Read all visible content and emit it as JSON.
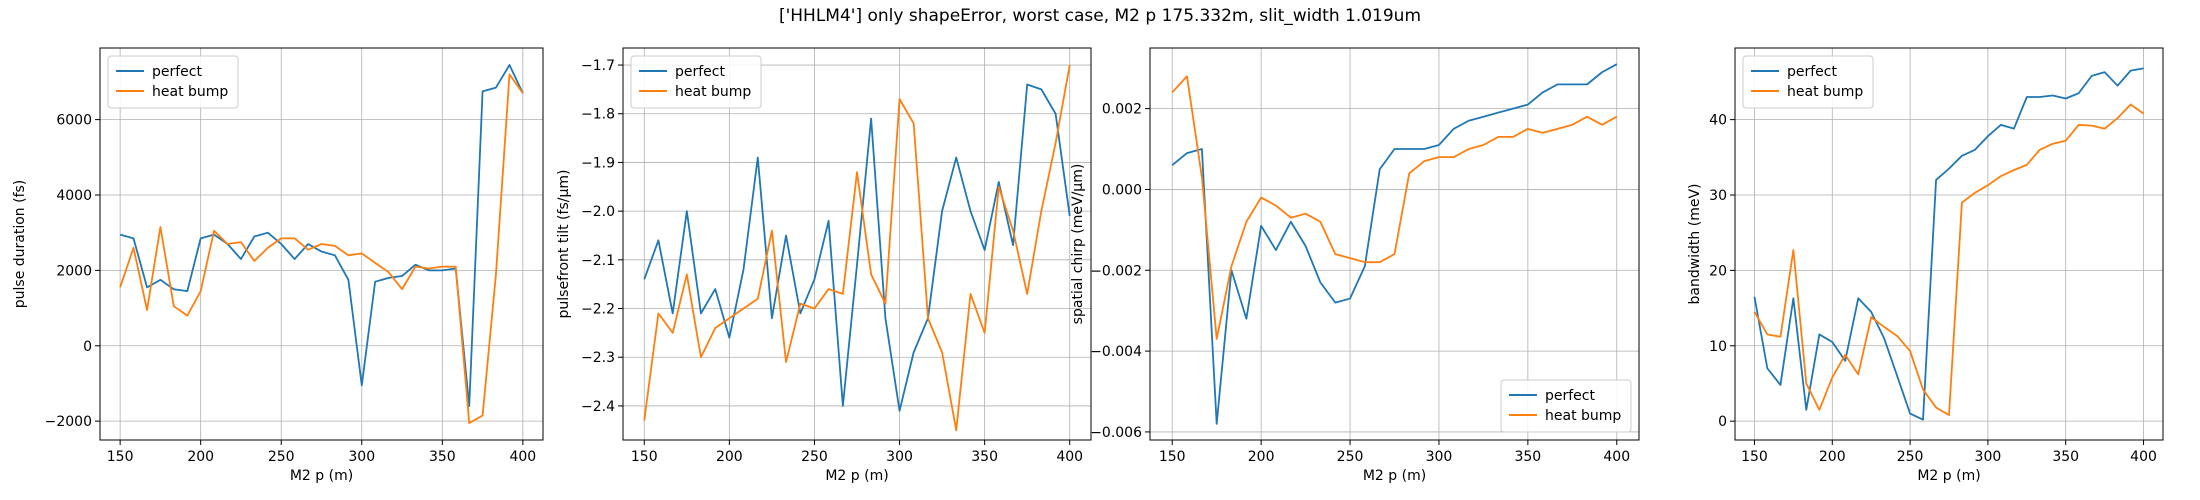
{
  "figure": {
    "title": "['HHLM4'] only shapeError, worst case, M2 p 175.332m, slit_width 1.019um"
  },
  "chart_data": [
    {
      "type": "line",
      "title": "",
      "xlabel": "M2 p (m)",
      "ylabel": "pulse duration (fs)",
      "xlim": [
        137.5,
        412.5
      ],
      "ylim": [
        -2500,
        7900
      ],
      "xticks": [
        150,
        200,
        250,
        300,
        350,
        400
      ],
      "yticks": [
        -2000,
        0,
        2000,
        4000,
        6000
      ],
      "ytick_labels": [
        "−2000",
        "0",
        "2000",
        "4000",
        "6000"
      ],
      "grid": true,
      "legend": "upper left",
      "x": [
        150,
        158.3,
        166.7,
        175,
        183.3,
        191.7,
        200,
        208.3,
        216.7,
        225,
        233.3,
        241.7,
        250,
        258.3,
        266.7,
        275,
        283.3,
        291.7,
        300,
        308.3,
        316.7,
        325,
        333.3,
        341.7,
        350,
        358.3,
        366.7,
        375,
        383.3,
        391.7,
        400
      ],
      "series": [
        {
          "name": "perfect",
          "color": "#1f77b4",
          "values": [
            2950,
            2850,
            1550,
            1750,
            1500,
            1450,
            2850,
            2950,
            2700,
            2300,
            2900,
            3000,
            2700,
            2300,
            2700,
            2500,
            2400,
            1750,
            -1050,
            1700,
            1800,
            1850,
            2150,
            2000,
            2000,
            2050,
            -1600,
            6750,
            6850,
            7450,
            6700
          ]
        },
        {
          "name": "heat bump",
          "color": "#ff7f0e",
          "values": [
            1550,
            2600,
            950,
            3150,
            1050,
            800,
            1450,
            3050,
            2700,
            2750,
            2250,
            2600,
            2850,
            2850,
            2550,
            2700,
            2650,
            2400,
            2450,
            2200,
            1950,
            1500,
            2100,
            2050,
            2100,
            2100,
            -2050,
            -1850,
            1900,
            7200,
            6700
          ]
        }
      ]
    },
    {
      "type": "line",
      "title": "",
      "xlabel": "M2 p (m)",
      "ylabel": "pulsefront tilt (fs/µm)",
      "xlim": [
        137.5,
        412.5
      ],
      "ylim": [
        -2.47,
        -1.665
      ],
      "xticks": [
        150,
        200,
        250,
        300,
        350,
        400
      ],
      "yticks": [
        -2.4,
        -2.3,
        -2.2,
        -2.1,
        -2.0,
        -1.9,
        -1.8,
        -1.7
      ],
      "ytick_labels": [
        "−2.4",
        "−2.3",
        "−2.2",
        "−2.1",
        "−2.0",
        "−1.9",
        "−1.8",
        "−1.7"
      ],
      "grid": true,
      "legend": "upper left",
      "x": [
        150,
        158.3,
        166.7,
        175,
        183.3,
        191.7,
        200,
        208.3,
        216.7,
        225,
        233.3,
        241.7,
        250,
        258.3,
        266.7,
        275,
        283.3,
        291.7,
        300,
        308.3,
        316.7,
        325,
        333.3,
        341.7,
        350,
        358.3,
        366.7,
        375,
        383.3,
        391.7,
        400
      ],
      "series": [
        {
          "name": "perfect",
          "color": "#1f77b4",
          "values": [
            -2.14,
            -2.06,
            -2.21,
            -2.0,
            -2.21,
            -2.16,
            -2.26,
            -2.12,
            -1.89,
            -2.22,
            -2.05,
            -2.21,
            -2.14,
            -2.02,
            -2.4,
            -2.11,
            -1.81,
            -2.22,
            -2.41,
            -2.29,
            -2.22,
            -2.0,
            -1.89,
            -2.0,
            -2.08,
            -1.94,
            -2.07,
            -1.74,
            -1.75,
            -1.8,
            -2.01
          ]
        },
        {
          "name": "heat bump",
          "color": "#ff7f0e",
          "values": [
            -2.43,
            -2.21,
            -2.25,
            -2.13,
            -2.3,
            -2.24,
            -2.22,
            -2.2,
            -2.18,
            -2.04,
            -2.31,
            -2.19,
            -2.2,
            -2.16,
            -2.17,
            -1.92,
            -2.13,
            -2.19,
            -1.77,
            -1.82,
            -2.22,
            -2.29,
            -2.45,
            -2.17,
            -2.25,
            -1.95,
            -2.04,
            -2.17,
            -2.0,
            -1.86,
            -1.7
          ]
        }
      ]
    },
    {
      "type": "line",
      "title": "",
      "xlabel": "M2 p (m)",
      "ylabel": "spatial chirp (meV/µm)",
      "xlim": [
        137.5,
        412.5
      ],
      "ylim": [
        -0.0062,
        0.0035
      ],
      "xticks": [
        150,
        200,
        250,
        300,
        350,
        400
      ],
      "yticks": [
        -0.006,
        -0.004,
        -0.002,
        0.0,
        0.002
      ],
      "ytick_labels": [
        "−0.006",
        "−0.004",
        "−0.002",
        "0.000",
        "0.002"
      ],
      "grid": true,
      "legend": "lower right",
      "x": [
        150,
        158.3,
        166.7,
        175,
        183.3,
        191.7,
        200,
        208.3,
        216.7,
        225,
        233.3,
        241.7,
        250,
        258.3,
        266.7,
        275,
        283.3,
        291.7,
        300,
        308.3,
        316.7,
        325,
        333.3,
        341.7,
        350,
        358.3,
        366.7,
        375,
        383.3,
        391.7,
        400
      ],
      "series": [
        {
          "name": "perfect",
          "color": "#1f77b4",
          "values": [
            0.0006,
            0.0009,
            0.001,
            -0.0058,
            -0.002,
            -0.0032,
            -0.0009,
            -0.0015,
            -0.0008,
            -0.0014,
            -0.0023,
            -0.0028,
            -0.0027,
            -0.0019,
            0.0005,
            0.001,
            0.001,
            0.001,
            0.0011,
            0.0015,
            0.0017,
            0.0018,
            0.0019,
            0.002,
            0.0021,
            0.0024,
            0.0026,
            0.0026,
            0.0026,
            0.0029,
            0.0031
          ]
        },
        {
          "name": "heat bump",
          "color": "#ff7f0e",
          "values": [
            0.0024,
            0.0028,
            0.0003,
            -0.0037,
            -0.0019,
            -0.0008,
            -0.0002,
            -0.0004,
            -0.0007,
            -0.0006,
            -0.0008,
            -0.0016,
            -0.0017,
            -0.0018,
            -0.0018,
            -0.0016,
            0.0004,
            0.0007,
            0.0008,
            0.0008,
            0.001,
            0.0011,
            0.0013,
            0.0013,
            0.0015,
            0.0014,
            0.0015,
            0.0016,
            0.0018,
            0.0016,
            0.0018
          ]
        }
      ]
    },
    {
      "type": "line",
      "title": "",
      "xlabel": "M2 p (m)",
      "ylabel": "bandwidth (meV)",
      "xlim": [
        137.5,
        412.5
      ],
      "ylim": [
        -2.5,
        49.5
      ],
      "xticks": [
        150,
        200,
        250,
        300,
        350,
        400
      ],
      "yticks": [
        0,
        10,
        20,
        30,
        40
      ],
      "ytick_labels": [
        "0",
        "10",
        "20",
        "30",
        "40"
      ],
      "grid": true,
      "legend": "upper left",
      "x": [
        150,
        158.3,
        166.7,
        175,
        183.3,
        191.7,
        200,
        208.3,
        216.7,
        225,
        233.3,
        241.7,
        250,
        258.3,
        266.7,
        275,
        283.3,
        291.7,
        300,
        308.3,
        316.7,
        325,
        333.3,
        341.7,
        350,
        358.3,
        366.7,
        375,
        383.3,
        391.7,
        400
      ],
      "series": [
        {
          "name": "perfect",
          "color": "#1f77b4",
          "values": [
            16.5,
            7.0,
            4.8,
            16.3,
            1.5,
            11.5,
            10.5,
            8.0,
            16.3,
            14.5,
            11.0,
            6.0,
            1.0,
            0.2,
            32.0,
            33.5,
            35.2,
            36.0,
            37.8,
            39.3,
            38.8,
            43.0,
            43.0,
            43.2,
            42.8,
            43.5,
            45.8,
            46.3,
            44.5,
            46.5,
            46.8
          ]
        },
        {
          "name": "heat bump",
          "color": "#ff7f0e",
          "values": [
            14.5,
            11.5,
            11.2,
            22.7,
            5.0,
            1.5,
            5.8,
            8.8,
            6.2,
            13.8,
            12.5,
            11.3,
            9.3,
            4.2,
            1.8,
            0.8,
            29.0,
            30.3,
            31.3,
            32.5,
            33.3,
            34.0,
            36.0,
            36.8,
            37.2,
            39.3,
            39.2,
            38.8,
            40.2,
            42.0,
            40.8
          ]
        }
      ]
    }
  ]
}
